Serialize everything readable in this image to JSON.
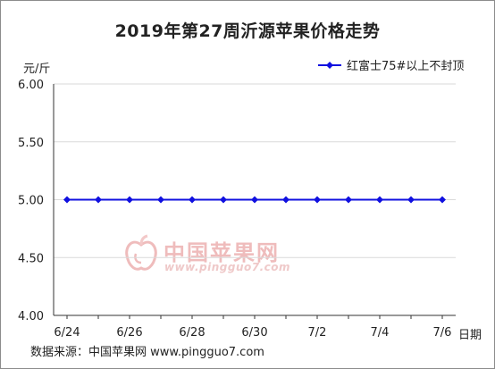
{
  "title": "2019年第27周沂源苹果价格走势",
  "source_text": "数据来源：中国苹果网 www.pingguo7.com",
  "watermark": {
    "name": "中国苹果网",
    "url": "www.pingguo7.com"
  },
  "colors": {
    "series": "#1010e0",
    "grid": "#d9d9d9",
    "axis": "#333333"
  },
  "chart_data": {
    "type": "line",
    "title": "2019年第27周沂源苹果价格走势",
    "ylabel": "元/斤",
    "xlabel": "日期",
    "ylim": [
      4.0,
      6.0
    ],
    "yticks": [
      "4.00",
      "4.50",
      "5.00",
      "5.50",
      "6.00"
    ],
    "x": [
      "6/24",
      "6/25",
      "6/26",
      "6/27",
      "6/28",
      "6/29",
      "6/30",
      "7/1",
      "7/2",
      "7/3",
      "7/4",
      "7/5",
      "7/6"
    ],
    "xtick_labels": [
      "6/24",
      "6/26",
      "6/28",
      "6/30",
      "7/2",
      "7/4",
      "7/6"
    ],
    "series": [
      {
        "name": "红富士75#以上不封顶",
        "values": [
          5.0,
          5.0,
          5.0,
          5.0,
          5.0,
          5.0,
          5.0,
          5.0,
          5.0,
          5.0,
          5.0,
          5.0,
          5.0
        ]
      }
    ],
    "grid": "horizontal",
    "legend": "top-right"
  }
}
